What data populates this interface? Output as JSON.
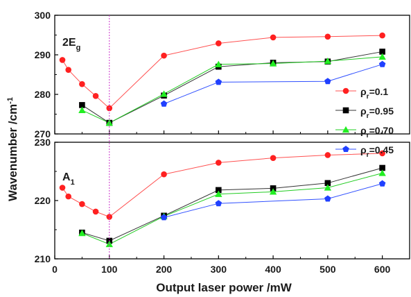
{
  "chart_data": [
    {
      "type": "line",
      "panel": "upper",
      "panel_label": {
        "main": "2E",
        "sub": "g"
      },
      "ylim": [
        270,
        300
      ],
      "yticks": [
        270,
        280,
        290,
        300
      ],
      "xlim": [
        0,
        650
      ],
      "xticks": [
        0,
        100,
        200,
        300,
        400,
        500,
        600
      ],
      "series": [
        {
          "name": "ρr=0.1",
          "key": "rho01",
          "marker": "circle",
          "color": "#ff2020",
          "line_color": "#ff5050",
          "points": [
            [
              14,
              288.7
            ],
            [
              25,
              286.2
            ],
            [
              50,
              282.6
            ],
            [
              75,
              279.6
            ],
            [
              100,
              276.5
            ],
            [
              200,
              289.8
            ],
            [
              300,
              292.9
            ],
            [
              400,
              294.4
            ],
            [
              500,
              294.6
            ],
            [
              600,
              294.9
            ]
          ]
        },
        {
          "name": "ρr=0.95",
          "key": "rho095",
          "marker": "square",
          "color": "#000000",
          "line_color": "#333333",
          "points": [
            [
              50,
              277.3
            ],
            [
              100,
              272.8
            ],
            [
              200,
              279.7
            ],
            [
              300,
              287.0
            ],
            [
              400,
              288.0
            ],
            [
              500,
              288.3
            ],
            [
              600,
              290.8
            ]
          ]
        },
        {
          "name": "ρr=0.70",
          "key": "rho070",
          "marker": "triangle",
          "color": "#22ee22",
          "line_color": "#22cc22",
          "points": [
            [
              50,
              276.0
            ],
            [
              100,
              272.8
            ],
            [
              200,
              280.1
            ],
            [
              300,
              287.6
            ],
            [
              400,
              287.8
            ],
            [
              500,
              288.4
            ],
            [
              600,
              289.5
            ]
          ]
        },
        {
          "name": "ρr=0.45",
          "key": "rho045",
          "marker": "pentagon",
          "color": "#2040ff",
          "line_color": "#3050ff",
          "points": [
            [
              200,
              277.6
            ],
            [
              300,
              283.1
            ],
            [
              500,
              283.3
            ],
            [
              600,
              287.6
            ]
          ]
        }
      ]
    },
    {
      "type": "line",
      "panel": "lower",
      "panel_label": {
        "main": "A",
        "sub": "1"
      },
      "ylim": [
        210,
        230
      ],
      "yticks": [
        210,
        220,
        230
      ],
      "xlim": [
        0,
        650
      ],
      "xticks": [
        0,
        100,
        200,
        300,
        400,
        500,
        600
      ],
      "series": [
        {
          "name": "ρr=0.1",
          "key": "rho01",
          "marker": "circle",
          "color": "#ff2020",
          "line_color": "#ff5050",
          "points": [
            [
              14,
              222.2
            ],
            [
              25,
              220.7
            ],
            [
              50,
              219.4
            ],
            [
              75,
              218.1
            ],
            [
              100,
              217.2
            ],
            [
              200,
              224.5
            ],
            [
              300,
              226.5
            ],
            [
              400,
              227.3
            ],
            [
              500,
              227.8
            ],
            [
              600,
              228.1
            ]
          ]
        },
        {
          "name": "ρr=0.95",
          "key": "rho095",
          "marker": "square",
          "color": "#000000",
          "line_color": "#333333",
          "points": [
            [
              50,
              214.5
            ],
            [
              100,
              213.1
            ],
            [
              200,
              217.4
            ],
            [
              300,
              221.8
            ],
            [
              400,
              222.1
            ],
            [
              500,
              223.0
            ],
            [
              600,
              225.6
            ]
          ]
        },
        {
          "name": "ρr=0.70",
          "key": "rho070",
          "marker": "triangle",
          "color": "#22ee22",
          "line_color": "#22cc22",
          "points": [
            [
              50,
              214.4
            ],
            [
              100,
              212.5
            ],
            [
              200,
              217.3
            ],
            [
              300,
              221.1
            ],
            [
              400,
              221.5
            ],
            [
              500,
              222.2
            ],
            [
              600,
              224.7
            ]
          ]
        },
        {
          "name": "ρr=0.45",
          "key": "rho045",
          "marker": "pentagon",
          "color": "#2040ff",
          "line_color": "#3050ff",
          "points": [
            [
              200,
              217.1
            ],
            [
              300,
              219.5
            ],
            [
              500,
              220.3
            ],
            [
              600,
              222.9
            ]
          ]
        }
      ]
    }
  ],
  "axes": {
    "xlabel": "Output laser power /mW",
    "ylabel": {
      "main": "Wavenumber /cm",
      "sup": "-1"
    },
    "reference_line_x": 100,
    "reference_line_color": "#cc33cc"
  },
  "legend": {
    "placement": "right, between panels",
    "entries": [
      {
        "key": "rho01",
        "base": "ρ",
        "sub": "r",
        "value": "=0.1"
      },
      {
        "key": "rho095",
        "base": "ρ",
        "sub": "r",
        "value": "=0.95"
      },
      {
        "key": "rho070",
        "base": "ρ",
        "sub": "r",
        "value": "=0.70"
      },
      {
        "key": "rho045",
        "base": "ρ",
        "sub": "r",
        "value": "=0.45"
      }
    ]
  }
}
